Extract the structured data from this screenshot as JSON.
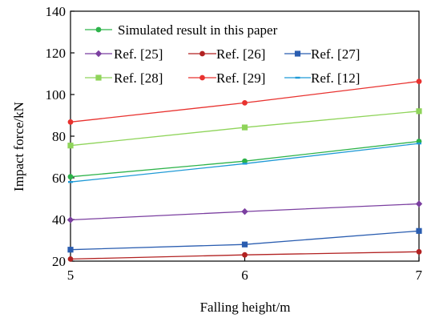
{
  "chart_data": {
    "type": "line",
    "xlabel": "Falling height/m",
    "ylabel": "Impact force/kN",
    "x": [
      5,
      6,
      7
    ],
    "xlim": [
      5,
      7
    ],
    "ylim": [
      20,
      140
    ],
    "x_ticks": [
      "5",
      "6",
      "7"
    ],
    "y_ticks": [
      "20",
      "40",
      "60",
      "80",
      "100",
      "120",
      "140"
    ],
    "grid": false,
    "legend_position": "top",
    "series": [
      {
        "name": "Simulated result in this paper",
        "values": [
          60.5,
          68.0,
          77.5
        ],
        "color": "#2db34a",
        "marker": "circle"
      },
      {
        "name": "Ref. [25]",
        "values": [
          39.8,
          43.8,
          47.5
        ],
        "color": "#7b3fa0",
        "marker": "diamond"
      },
      {
        "name": "Ref. [26]",
        "values": [
          21.0,
          23.0,
          24.5
        ],
        "color": "#b22222",
        "marker": "circle"
      },
      {
        "name": "Ref. [27]",
        "values": [
          25.5,
          28.0,
          34.5
        ],
        "color": "#2a5db0",
        "marker": "square"
      },
      {
        "name": "Ref. [28]",
        "values": [
          75.5,
          84.2,
          92.0
        ],
        "color": "#8fd45a",
        "marker": "square"
      },
      {
        "name": "Ref. [29]",
        "values": [
          86.8,
          96.0,
          106.3
        ],
        "color": "#e8322f",
        "marker": "circle"
      },
      {
        "name": "Ref. [12]",
        "values": [
          58.0,
          66.8,
          76.5
        ],
        "color": "#1f9ad6",
        "marker": "dash"
      }
    ]
  }
}
